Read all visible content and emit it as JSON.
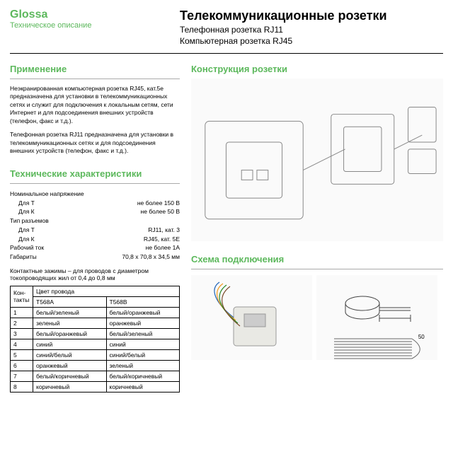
{
  "brand": {
    "name": "Glossa",
    "subtitle": "Техническое описание"
  },
  "title": {
    "main": "Телекоммуникационные розетки",
    "sub1": "Телефонная розетка RJ11",
    "sub2": "Компьютерная розетка RJ45"
  },
  "sections": {
    "application": "Применение",
    "specs": "Технические характеристики",
    "construction": "Конструкция розетки",
    "scheme": "Схема подключения"
  },
  "application": {
    "p1": "Неэкранированная компьютерная розетка RJ45, кат.5е предназначена для установки в телекоммуникационных сетях и служит для подключения к локальным сетям, сети Интернет и для подсоединения внешних устройств (телефон, факс и т.д.).",
    "p2": "Телефонная розетка RJ11 предназначена для установки в телекоммуникационных сетях и для подсоединения внешних устройств (телефон, факс и т.д.)."
  },
  "specs": {
    "rows": [
      {
        "label": "Номинальное напряжение",
        "value": ""
      },
      {
        "label": "Для Т",
        "value": "не более 150 В",
        "indent": true
      },
      {
        "label": "Для К",
        "value": "не более 50 В",
        "indent": true
      },
      {
        "label": "Тип разъемов",
        "value": ""
      },
      {
        "label": "Для Т",
        "value": "RJ11, кат. 3",
        "indent": true
      },
      {
        "label": "Для К",
        "value": "RJ45, кат. 5E",
        "indent": true
      },
      {
        "label": "Рабочий ток",
        "value": "не более 1А"
      },
      {
        "label": "Габариты",
        "value": "70,8 х 70,8 х 34,5 мм"
      }
    ]
  },
  "contact_note": "Контактные зажимы – для проводов с диаметром токопроводящих жил от 0,4 до 0,8 мм",
  "wiring": {
    "headers": {
      "contacts": "Кон-такты",
      "color": "Цвет провода",
      "t568a": "T568A",
      "t568b": "T568B"
    },
    "rows": [
      {
        "n": "1",
        "a": "белый/зеленый",
        "b": "белый/оранжевый"
      },
      {
        "n": "2",
        "a": "зеленый",
        "b": "оранжевый"
      },
      {
        "n": "3",
        "a": "белый/оранжевый",
        "b": "белый/зеленый"
      },
      {
        "n": "4",
        "a": "синий",
        "b": "синий"
      },
      {
        "n": "5",
        "a": "синий/белый",
        "b": "синий/белый"
      },
      {
        "n": "6",
        "a": "оранжевый",
        "b": "зеленый"
      },
      {
        "n": "7",
        "a": "белый/коричневый",
        "b": "белый/коричневый"
      },
      {
        "n": "8",
        "a": "коричневый",
        "b": "коричневый"
      }
    ]
  },
  "scheme": {
    "dim": "50"
  }
}
